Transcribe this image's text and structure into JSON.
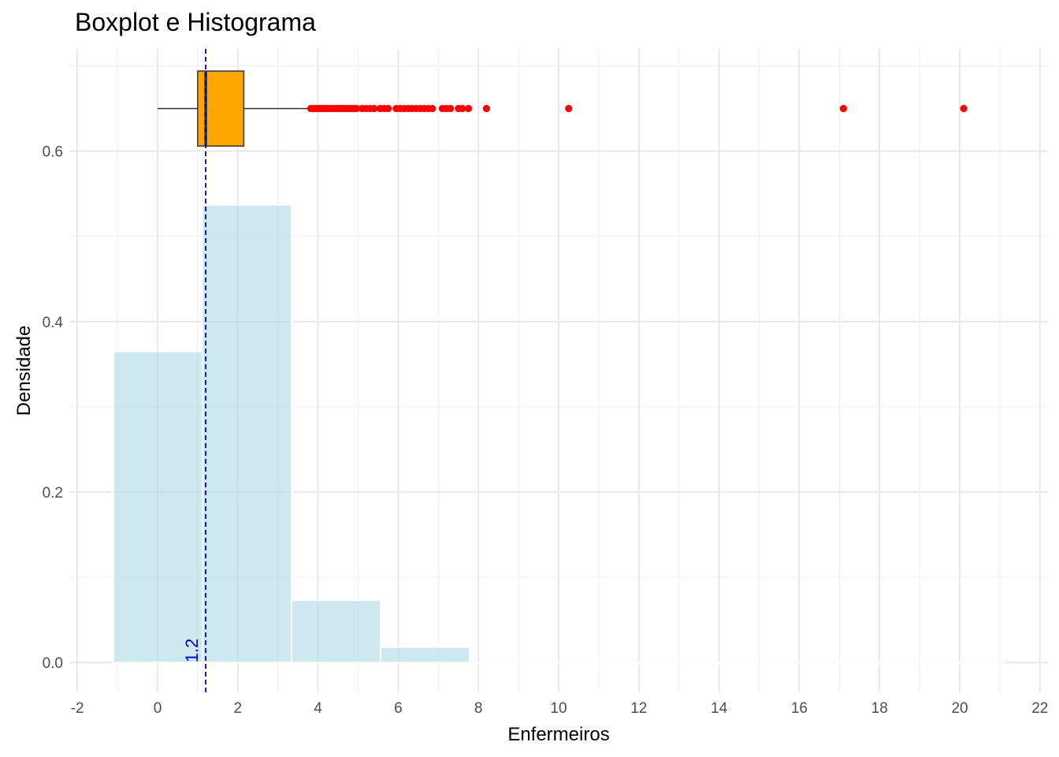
{
  "chart_data": {
    "type": "histogram",
    "title": "Boxplot e Histograma",
    "xlabel": "Enfermeiros",
    "ylabel": "Densidade",
    "xlim": [
      -2.2,
      22.2
    ],
    "ylim": [
      -0.035,
      0.72
    ],
    "x_ticks": [
      -2,
      0,
      2,
      4,
      6,
      8,
      10,
      12,
      14,
      16,
      18,
      20,
      22
    ],
    "x_tick_labels": [
      "-2",
      "0",
      "2",
      "4",
      "6",
      "8",
      "10",
      "12",
      "14",
      "16",
      "18",
      "20",
      "22"
    ],
    "y_ticks": [
      0.0,
      0.2,
      0.4,
      0.6
    ],
    "y_tick_labels": [
      "0.0",
      "0.2",
      "0.4",
      "0.6"
    ],
    "grid": true,
    "histogram": {
      "bins": [
        {
          "x0": -1.1,
          "x1": 1.12,
          "density": 0.365
        },
        {
          "x0": 1.12,
          "x1": 3.34,
          "density": 0.537
        },
        {
          "x0": 3.34,
          "x1": 5.56,
          "density": 0.073
        },
        {
          "x0": 5.56,
          "x1": 7.78,
          "density": 0.018
        },
        {
          "x0": 7.78,
          "x1": 10.0,
          "density": 0.0
        },
        {
          "x0": 10.0,
          "x1": 12.22,
          "density": 0.0
        },
        {
          "x0": 12.22,
          "x1": 14.44,
          "density": 0.0
        },
        {
          "x0": 14.44,
          "x1": 16.66,
          "density": 0.0
        },
        {
          "x0": 16.66,
          "x1": 18.88,
          "density": 0.0
        },
        {
          "x0": 18.88,
          "x1": 21.1,
          "density": 0.0
        }
      ],
      "fill": "#add8e6",
      "outline": "#ffffff"
    },
    "boxplot": {
      "y_position": 0.65,
      "whisker_low": 0.0,
      "q1": 1.0,
      "median": 1.2,
      "q3": 2.15,
      "whisker_high": 3.8,
      "box_height": 0.088,
      "fill": "#ffa500",
      "outlier_color": "#ff0000",
      "outliers": [
        3.82,
        3.88,
        3.94,
        4.0,
        4.06,
        4.12,
        4.18,
        4.24,
        4.3,
        4.36,
        4.42,
        4.48,
        4.54,
        4.6,
        4.66,
        4.72,
        4.78,
        4.84,
        4.9,
        4.96,
        5.1,
        5.2,
        5.3,
        5.4,
        5.55,
        5.65,
        5.75,
        5.95,
        6.05,
        6.15,
        6.25,
        6.35,
        6.45,
        6.55,
        6.65,
        6.75,
        6.85,
        7.1,
        7.2,
        7.3,
        7.5,
        7.6,
        7.75,
        8.2,
        10.25,
        17.1,
        20.1
      ]
    },
    "median_line": {
      "x": 1.2,
      "label": "1.2",
      "color": "#0000cd"
    }
  }
}
